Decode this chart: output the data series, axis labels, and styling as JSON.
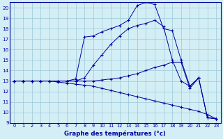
{
  "title": "Graphe des températures (°c)",
  "bg_color": "#d4eef5",
  "line_color": "#0000a0",
  "grid_color": "#9ac8d8",
  "xlim": [
    -0.5,
    23.5
  ],
  "ylim": [
    9,
    20.5
  ],
  "xticks": [
    0,
    1,
    2,
    3,
    4,
    5,
    6,
    7,
    8,
    9,
    10,
    11,
    12,
    13,
    14,
    15,
    16,
    17,
    18,
    19,
    20,
    21,
    22,
    23
  ],
  "yticks": [
    9,
    10,
    11,
    12,
    13,
    14,
    15,
    16,
    17,
    18,
    19,
    20
  ],
  "curve_main_x": [
    0,
    1,
    2,
    3,
    4,
    5,
    6,
    7,
    8,
    9,
    10,
    11,
    12,
    13,
    14,
    15,
    16,
    17,
    18,
    19,
    20,
    21,
    22,
    23
  ],
  "curve_main_y": [
    13.0,
    13.0,
    13.0,
    13.0,
    13.0,
    13.0,
    13.0,
    13.2,
    17.2,
    17.3,
    17.7,
    18.0,
    18.3,
    18.8,
    20.2,
    20.5,
    20.3,
    18.0,
    17.8,
    15.0,
    12.5,
    13.3,
    9.5,
    9.4
  ],
  "curve_sec_x": [
    0,
    1,
    2,
    3,
    4,
    5,
    6,
    7,
    8,
    9,
    10,
    11,
    12,
    13,
    14,
    15,
    16,
    17,
    18,
    19,
    20,
    21,
    22,
    23
  ],
  "curve_sec_y": [
    13.0,
    13.0,
    13.0,
    13.0,
    13.0,
    13.0,
    13.0,
    13.0,
    13.3,
    14.5,
    15.5,
    16.5,
    17.3,
    18.0,
    18.3,
    18.5,
    18.8,
    18.2,
    15.0,
    13.0,
    12.5,
    13.3,
    9.5,
    9.4
  ],
  "curve_flat_x": [
    0,
    1,
    2,
    3,
    4,
    5,
    6,
    7,
    8,
    9,
    10,
    11,
    12,
    13,
    14,
    15,
    16,
    17,
    18,
    19,
    20,
    21,
    22,
    23
  ],
  "curve_flat_y": [
    13.0,
    13.0,
    13.0,
    13.0,
    13.0,
    13.0,
    13.0,
    13.0,
    13.0,
    13.0,
    13.1,
    13.2,
    13.3,
    13.5,
    13.7,
    14.0,
    14.3,
    14.5,
    14.8,
    14.8,
    12.3,
    13.3,
    9.5,
    9.4
  ],
  "curve_bot_x": [
    0,
    1,
    2,
    3,
    4,
    5,
    6,
    7,
    8,
    9,
    10,
    11,
    12,
    13,
    14,
    15,
    16,
    17,
    18,
    19,
    20,
    21,
    22,
    23
  ],
  "curve_bot_y": [
    13.0,
    13.0,
    13.0,
    13.0,
    13.0,
    12.9,
    12.8,
    12.7,
    12.6,
    12.5,
    12.3,
    12.1,
    11.9,
    11.7,
    11.5,
    11.3,
    11.1,
    10.9,
    10.7,
    10.5,
    10.3,
    10.1,
    9.8,
    9.4
  ]
}
